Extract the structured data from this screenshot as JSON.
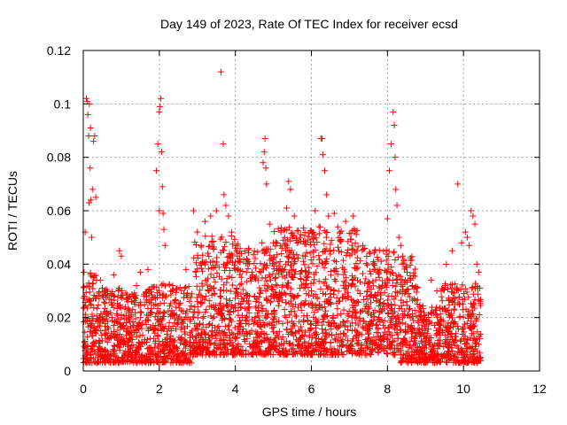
{
  "chart_data": {
    "type": "scatter",
    "title": "Day 149 of 2023, Rate Of TEC Index for receiver ecsd",
    "xlabel": "GPS time / hours",
    "ylabel": "ROTI / TECUs",
    "xlim": [
      0,
      12
    ],
    "ylim": [
      0,
      0.12
    ],
    "xticks": [
      "0",
      "2",
      "4",
      "6",
      "8",
      "10",
      "12"
    ],
    "yticks": [
      "0",
      "0.02",
      "0.04",
      "0.06",
      "0.08",
      "0.1",
      "0.12"
    ],
    "grid": true,
    "marker": "+",
    "series_color": "#ff0000",
    "series": [
      {
        "points": [
          [
            0.02,
            0.037
          ],
          [
            0.05,
            0.052
          ],
          [
            0.08,
            0.102
          ],
          [
            0.1,
            0.101
          ],
          [
            0.12,
            0.096
          ],
          [
            0.14,
            0.088
          ],
          [
            0.16,
            0.1
          ],
          [
            0.18,
            0.076
          ],
          [
            0.2,
            0.064
          ],
          [
            0.22,
            0.05
          ],
          [
            0.24,
            0.068
          ],
          [
            0.27,
            0.086
          ],
          [
            0.3,
            0.088
          ],
          [
            0.33,
            0.065
          ],
          [
            0.15,
            0.063
          ],
          [
            0.19,
            0.091
          ],
          [
            0.45,
            0.034
          ],
          [
            0.5,
            0.031
          ],
          [
            0.8,
            0.036
          ],
          [
            0.95,
            0.045
          ],
          [
            1.0,
            0.043
          ],
          [
            1.4,
            0.032
          ],
          [
            1.5,
            0.037
          ],
          [
            1.7,
            0.038
          ],
          [
            1.92,
            0.075
          ],
          [
            1.96,
            0.085
          ],
          [
            2.0,
            0.097
          ],
          [
            2.02,
            0.099
          ],
          [
            2.04,
            0.102
          ],
          [
            2.06,
            0.082
          ],
          [
            2.08,
            0.069
          ],
          [
            2.1,
            0.059
          ],
          [
            2.12,
            0.053
          ],
          [
            2.15,
            0.047
          ],
          [
            2.0,
            0.06
          ],
          [
            2.35,
            0.032
          ],
          [
            2.7,
            0.038
          ],
          [
            2.9,
            0.06
          ],
          [
            3.0,
            0.052
          ],
          [
            3.1,
            0.047
          ],
          [
            3.2,
            0.056
          ],
          [
            3.35,
            0.058
          ],
          [
            3.5,
            0.06
          ],
          [
            3.62,
            0.112
          ],
          [
            3.68,
            0.085
          ],
          [
            3.7,
            0.066
          ],
          [
            3.75,
            0.062
          ],
          [
            3.82,
            0.058
          ],
          [
            3.9,
            0.052
          ],
          [
            4.0,
            0.046
          ],
          [
            4.05,
            0.043
          ],
          [
            4.1,
            0.041
          ],
          [
            4.3,
            0.042
          ],
          [
            4.5,
            0.045
          ],
          [
            4.7,
            0.048
          ],
          [
            4.73,
            0.078
          ],
          [
            4.76,
            0.082
          ],
          [
            4.78,
            0.087
          ],
          [
            4.8,
            0.076
          ],
          [
            4.82,
            0.07
          ],
          [
            4.9,
            0.055
          ],
          [
            5.0,
            0.048
          ],
          [
            5.2,
            0.052
          ],
          [
            5.35,
            0.061
          ],
          [
            5.4,
            0.071
          ],
          [
            5.45,
            0.068
          ],
          [
            5.55,
            0.058
          ],
          [
            5.7,
            0.05
          ],
          [
            5.9,
            0.049
          ],
          [
            6.1,
            0.06
          ],
          [
            6.2,
            0.054
          ],
          [
            6.25,
            0.087
          ],
          [
            6.28,
            0.087
          ],
          [
            6.3,
            0.081
          ],
          [
            6.35,
            0.075
          ],
          [
            6.4,
            0.066
          ],
          [
            6.45,
            0.058
          ],
          [
            6.6,
            0.059
          ],
          [
            6.75,
            0.052
          ],
          [
            6.9,
            0.056
          ],
          [
            7.1,
            0.058
          ],
          [
            7.2,
            0.045
          ],
          [
            7.35,
            0.047
          ],
          [
            7.55,
            0.044
          ],
          [
            7.8,
            0.038
          ],
          [
            8.0,
            0.057
          ],
          [
            8.05,
            0.075
          ],
          [
            8.1,
            0.085
          ],
          [
            8.15,
            0.097
          ],
          [
            8.18,
            0.092
          ],
          [
            8.2,
            0.08
          ],
          [
            8.22,
            0.068
          ],
          [
            8.25,
            0.062
          ],
          [
            8.3,
            0.05
          ],
          [
            8.35,
            0.047
          ],
          [
            8.4,
            0.043
          ],
          [
            8.55,
            0.029
          ],
          [
            8.7,
            0.027
          ],
          [
            8.85,
            0.024
          ],
          [
            9.15,
            0.034
          ],
          [
            9.3,
            0.03
          ],
          [
            9.55,
            0.04
          ],
          [
            9.7,
            0.045
          ],
          [
            9.85,
            0.07
          ],
          [
            9.95,
            0.048
          ],
          [
            10.05,
            0.052
          ],
          [
            10.1,
            0.05
          ],
          [
            10.15,
            0.047
          ],
          [
            10.2,
            0.06
          ],
          [
            10.25,
            0.058
          ],
          [
            10.3,
            0.055
          ],
          [
            10.35,
            0.04
          ],
          [
            10.4,
            0.037
          ],
          [
            0.05,
            0.02
          ],
          [
            0.3,
            0.015
          ],
          [
            0.6,
            0.012
          ],
          [
            0.9,
            0.018
          ],
          [
            1.2,
            0.014
          ],
          [
            1.5,
            0.02
          ],
          [
            1.8,
            0.022
          ],
          [
            2.1,
            0.016
          ],
          [
            2.4,
            0.018
          ],
          [
            2.7,
            0.02
          ],
          [
            3.0,
            0.026
          ],
          [
            3.3,
            0.03
          ],
          [
            3.6,
            0.028
          ],
          [
            3.9,
            0.024
          ],
          [
            4.2,
            0.026
          ],
          [
            4.5,
            0.028
          ],
          [
            4.8,
            0.03
          ],
          [
            5.1,
            0.032
          ],
          [
            5.4,
            0.033
          ],
          [
            5.7,
            0.031
          ],
          [
            6.0,
            0.03
          ],
          [
            6.3,
            0.029
          ],
          [
            6.6,
            0.03
          ],
          [
            6.9,
            0.027
          ],
          [
            7.2,
            0.026
          ],
          [
            7.5,
            0.024
          ],
          [
            7.8,
            0.022
          ],
          [
            8.1,
            0.025
          ],
          [
            8.4,
            0.02
          ],
          [
            8.7,
            0.016
          ],
          [
            9.0,
            0.012
          ],
          [
            9.3,
            0.014
          ],
          [
            9.6,
            0.018
          ],
          [
            9.9,
            0.02
          ],
          [
            10.2,
            0.016
          ],
          [
            10.4,
            0.01
          ]
        ]
      }
    ]
  }
}
